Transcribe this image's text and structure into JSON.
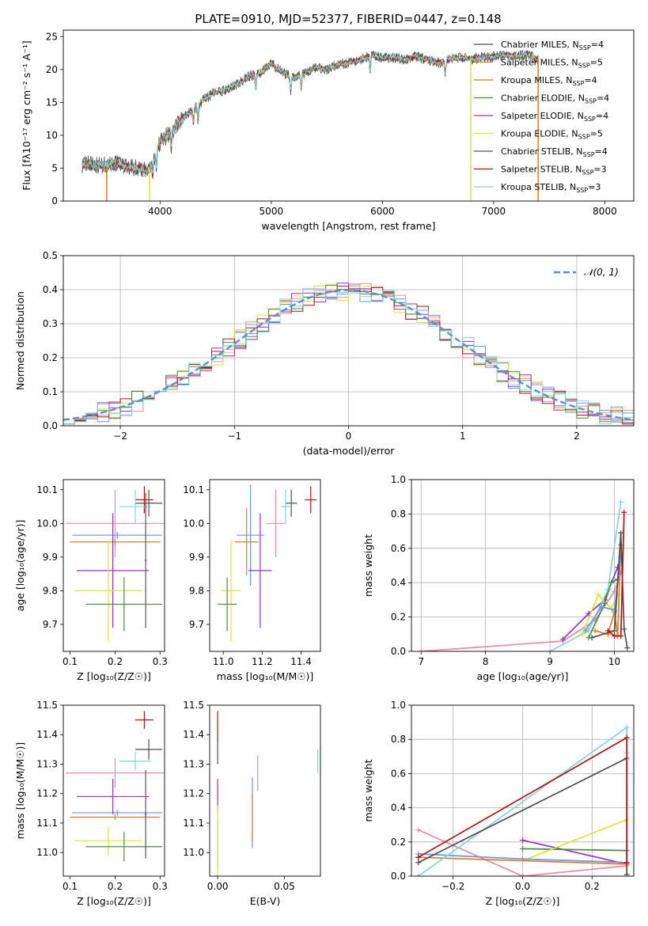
{
  "figure_title": "PLATE=0910, MJD=52377, FIBERID=0447, z=0.148",
  "colors": [
    "#4d4d4d",
    "#e07b1f",
    "#b8860b",
    "#4c8a3f",
    "#9b2fbf",
    "#d8e830",
    "#555555",
    "#b31212",
    "#7fd7dc",
    "#6495ed",
    "#e87db8",
    "#e88aa8"
  ],
  "chart_data": [
    {
      "id": "spectrum",
      "type": "line",
      "title": "PLATE=0910, MJD=52377, FIBERID=0447, z=0.148",
      "xlabel": "wavelength [Angstrom, rest frame]",
      "ylabel": "Flux [fλ10⁻¹⁷ erg cm⁻² s⁻¹ A⁻¹]",
      "xlim": [
        3130,
        8260
      ],
      "ylim": [
        0,
        26
      ],
      "xticks": [
        4000,
        5000,
        6000,
        7000,
        8000
      ],
      "yticks": [
        0,
        5,
        10,
        15,
        20,
        25
      ],
      "grid": false,
      "legend_position": "top-right",
      "series": [
        {
          "name": "Chabrier MILES, NSSP=4",
          "legend_text": "Chabrier MILES, N",
          "legend_sub": "SSP",
          "legend_tail": "=4",
          "color": "#4d4d4d"
        },
        {
          "name": "Salpeter MILES, NSSP=5",
          "legend_text": "Salpeter MILES, N",
          "legend_sub": "SSP",
          "legend_tail": "=5",
          "color": "#e07b1f"
        },
        {
          "name": "Kroupa MILES, NSSP=4",
          "legend_text": "Kroupa MILES, N",
          "legend_sub": "SSP",
          "legend_tail": "=4",
          "color": "#b8860b"
        },
        {
          "name": "Chabrier ELODIE, NSSP=4",
          "legend_text": "Chabrier ELODIE, N",
          "legend_sub": "SSP",
          "legend_tail": "=4",
          "color": "#4c8a3f"
        },
        {
          "name": "Salpeter ELODIE, NSSP=4",
          "legend_text": "Salpeter ELODIE, N",
          "legend_sub": "SSP",
          "legend_tail": "=4",
          "color": "#9b2fbf"
        },
        {
          "name": "Kroupa ELODIE, NSSP=5",
          "legend_text": "Kroupa ELODIE, N",
          "legend_sub": "SSP",
          "legend_tail": "=5",
          "color": "#d8e830"
        },
        {
          "name": "Chabrier STELIB, NSSP=4",
          "legend_text": "Chabrier STELIB, N",
          "legend_sub": "SSP",
          "legend_tail": "=4",
          "color": "#555555"
        },
        {
          "name": "Salpeter STELIB, NSSP=3",
          "legend_text": "Salpeter STELIB, N",
          "legend_sub": "SSP",
          "legend_tail": "=3",
          "color": "#b31212"
        },
        {
          "name": "Kroupa STELIB, NSSP=3",
          "legend_text": "Kroupa STELIB, N",
          "legend_sub": "SSP",
          "legend_tail": "=3",
          "color": "#7fd7dc"
        }
      ],
      "continuum": {
        "x": [
          3300,
          3400,
          3500,
          3600,
          3700,
          3800,
          3900,
          4000,
          4100,
          4200,
          4300,
          4400,
          4500,
          4600,
          4700,
          4800,
          4900,
          5000,
          5100,
          5200,
          5300,
          5400,
          5500,
          5600,
          5700,
          5800,
          5900,
          6000,
          6100,
          6200,
          6300,
          6400,
          6500,
          6600,
          6700,
          6800,
          6900,
          7000,
          7100,
          7200,
          7300,
          7400
        ],
        "y": [
          5.6,
          5.6,
          5.5,
          5.8,
          5.2,
          5.0,
          4.6,
          9.0,
          10.5,
          12.5,
          14.0,
          15.5,
          16.5,
          17.0,
          17.8,
          19.0,
          19.5,
          21.0,
          19.5,
          18.8,
          19.4,
          20.3,
          20.0,
          20.8,
          21.0,
          21.5,
          22.2,
          21.8,
          21.8,
          21.5,
          22.0,
          21.5,
          21.0,
          21.6,
          21.8,
          21.6,
          21.8,
          22.0,
          22.2,
          22.0,
          22.3,
          21.5
        ]
      },
      "edge_lines": [
        {
          "x": 3520,
          "ymin": 0,
          "ymax": 5.3,
          "color": "#e07b1f"
        },
        {
          "x": 3905,
          "ymin": 0,
          "ymax": 5.0,
          "color": "#d8e830"
        },
        {
          "x": 6795,
          "ymin": 0,
          "ymax": 21.5,
          "color": "#d8e830"
        },
        {
          "x": 7400,
          "ymin": 0,
          "ymax": 21.8,
          "color": "#e07b1f"
        }
      ]
    },
    {
      "id": "residuals",
      "type": "step",
      "xlabel": "(data-model)/error",
      "ylabel": "Normed distribution",
      "xlim": [
        -2.5,
        2.5
      ],
      "ylim": [
        0,
        0.5
      ],
      "xticks": [
        -2,
        -1,
        0,
        1,
        2
      ],
      "yticks": [
        0.0,
        0.1,
        0.2,
        0.3,
        0.4,
        0.5
      ],
      "grid": true,
      "legend_position": "top-right",
      "legend_label": "𝒩(0, 1)",
      "gaussian_color": "#5a8fd6",
      "bin_width": 0.1,
      "series_colors": [
        "#6495ed",
        "#e88aa8",
        "#d8e830",
        "#9b2fbf",
        "#b31212",
        "#4c8a3f",
        "#7fd7dc"
      ]
    },
    {
      "id": "age_vs_Z",
      "type": "errorbar",
      "xlabel": "Z [log₁₀(Z/Z☉)]",
      "ylabel": "age  [log₁₀(age/yr)]",
      "xlim": [
        0.085,
        0.31
      ],
      "ylim": [
        9.62,
        10.13
      ],
      "xticks": [
        0.1,
        0.2,
        0.3
      ],
      "yticks": [
        9.7,
        9.8,
        9.9,
        10.0,
        10.1
      ],
      "points": [
        {
          "x": 0.265,
          "xerr": 0.02,
          "y": 10.07,
          "yerr": 0.04,
          "color": "#b31212"
        },
        {
          "x": 0.275,
          "xerr": 0.03,
          "y": 10.06,
          "yerr": 0.04,
          "color": "#4d4d4d"
        },
        {
          "x": 0.245,
          "xerr": 0.035,
          "y": 10.05,
          "yerr": 0.05,
          "color": "#7fd7dc"
        },
        {
          "x": 0.2,
          "xerr": 0.11,
          "y": 10.0,
          "yerr": 0.1,
          "color": "#e88aa8"
        },
        {
          "x": 0.205,
          "xerr": 0.1,
          "y": 9.965,
          "yerr": 0.01,
          "color": "#6495ed"
        },
        {
          "x": 0.2,
          "xerr": 0.1,
          "y": 9.945,
          "yerr": 0.01,
          "color": "#e07b1f"
        },
        {
          "x": 0.195,
          "xerr": 0.08,
          "y": 9.86,
          "yerr": 0.17,
          "color": "#9b2fbf"
        },
        {
          "x": 0.185,
          "xerr": 0.075,
          "y": 9.8,
          "yerr": 0.15,
          "color": "#d8e830"
        },
        {
          "x": 0.22,
          "xerr": 0.085,
          "y": 9.76,
          "yerr": 0.08,
          "color": "#4c8a3f"
        },
        {
          "x": 0.268,
          "xerr": 0.002,
          "y": 9.89,
          "yerr": 0.2,
          "color": "#555555"
        }
      ]
    },
    {
      "id": "age_vs_mass",
      "type": "errorbar",
      "xlabel": "mass [log₁₀(M/M☉)]",
      "ylabel": "",
      "xlim": [
        10.93,
        11.5
      ],
      "ylim": [
        9.62,
        10.13
      ],
      "xticks": [
        11.0,
        11.2,
        11.4
      ],
      "yticks": [
        9.7,
        9.8,
        9.9,
        10.0,
        10.1
      ],
      "points": [
        {
          "x": 11.45,
          "xerr": 0.03,
          "y": 10.07,
          "yerr": 0.04,
          "color": "#b31212"
        },
        {
          "x": 11.35,
          "xerr": 0.03,
          "y": 10.06,
          "yerr": 0.04,
          "color": "#4d4d4d"
        },
        {
          "x": 11.32,
          "xerr": 0.025,
          "y": 10.05,
          "yerr": 0.05,
          "color": "#7fd7dc"
        },
        {
          "x": 11.27,
          "xerr": 0.05,
          "y": 10.0,
          "yerr": 0.1,
          "color": "#e88aa8"
        },
        {
          "x": 11.14,
          "xerr": 0.07,
          "y": 9.965,
          "yerr": 0.15,
          "color": "#6495ed"
        },
        {
          "x": 11.12,
          "xerr": 0.06,
          "y": 9.945,
          "yerr": 0.1,
          "color": "#e07b1f"
        },
        {
          "x": 11.19,
          "xerr": 0.06,
          "y": 9.86,
          "yerr": 0.17,
          "color": "#9b2fbf"
        },
        {
          "x": 11.04,
          "xerr": 0.05,
          "y": 9.8,
          "yerr": 0.15,
          "color": "#d8e830"
        },
        {
          "x": 11.02,
          "xerr": 0.05,
          "y": 9.76,
          "yerr": 0.08,
          "color": "#4c8a3f"
        }
      ]
    },
    {
      "id": "massweight_vs_age",
      "type": "line",
      "xlabel": "age  [log₁₀(age/yr)]",
      "ylabel": "mass weight",
      "xlim": [
        6.85,
        10.3
      ],
      "ylim": [
        0,
        1.0
      ],
      "xticks": [
        7,
        8,
        9,
        10
      ],
      "yticks": [
        0.0,
        0.2,
        0.4,
        0.6,
        0.8,
        1.0
      ],
      "grid": true,
      "series": [
        {
          "color": "#e88aa8",
          "x": [
            7.0,
            9.2,
            9.7,
            10.0,
            10.1
          ],
          "y": [
            0.0,
            0.06,
            0.18,
            0.35,
            0.46
          ]
        },
        {
          "color": "#9b2fbf",
          "x": [
            9.2,
            9.6,
            9.85,
            10.05
          ],
          "y": [
            0.07,
            0.22,
            0.3,
            0.49
          ]
        },
        {
          "color": "#7fd7dc",
          "x": [
            9.0,
            9.6,
            9.9,
            10.1
          ],
          "y": [
            0.0,
            0.12,
            0.36,
            0.87
          ]
        },
        {
          "color": "#d8e830",
          "x": [
            9.5,
            9.75,
            9.95,
            10.05
          ],
          "y": [
            0.1,
            0.33,
            0.25,
            0.33
          ]
        },
        {
          "color": "#4c8a3f",
          "x": [
            9.6,
            9.85,
            9.95,
            10.05
          ],
          "y": [
            0.08,
            0.28,
            0.4,
            0.42
          ]
        },
        {
          "color": "#e07b1f",
          "x": [
            9.7,
            9.9,
            10.0,
            10.05,
            10.1
          ],
          "y": [
            0.12,
            0.1,
            0.23,
            0.09,
            0.62
          ]
        },
        {
          "color": "#6495ed",
          "x": [
            9.55,
            9.8,
            10.0,
            10.1
          ],
          "y": [
            0.12,
            0.26,
            0.24,
            0.55
          ]
        },
        {
          "color": "#4d4d4d",
          "x": [
            9.65,
            10.0,
            10.1,
            10.15,
            10.2
          ],
          "y": [
            0.08,
            0.12,
            0.69,
            0.13,
            0.02
          ]
        },
        {
          "color": "#b31212",
          "x": [
            9.9,
            10.0,
            10.1,
            10.15
          ],
          "y": [
            0.12,
            0.09,
            0.09,
            0.81
          ]
        }
      ]
    },
    {
      "id": "mass_vs_Z",
      "type": "errorbar",
      "xlabel": "Z [log₁₀(Z/Z☉)]",
      "ylabel": "mass [log₁₀(M/M☉)]",
      "xlim": [
        0.085,
        0.31
      ],
      "ylim": [
        10.92,
        11.5
      ],
      "xticks": [
        0.1,
        0.2,
        0.3
      ],
      "yticks": [
        11.0,
        11.1,
        11.2,
        11.3,
        11.4,
        11.5
      ],
      "points": [
        {
          "x": 0.265,
          "xerr": 0.02,
          "y": 11.45,
          "yerr": 0.03,
          "color": "#b31212"
        },
        {
          "x": 0.275,
          "xerr": 0.03,
          "y": 11.35,
          "yerr": 0.035,
          "color": "#4d4d4d"
        },
        {
          "x": 0.245,
          "xerr": 0.035,
          "y": 11.31,
          "yerr": 0.03,
          "color": "#7fd7dc"
        },
        {
          "x": 0.2,
          "xerr": 0.11,
          "y": 11.27,
          "yerr": 0.05,
          "color": "#e88aa8"
        },
        {
          "x": 0.205,
          "xerr": 0.1,
          "y": 11.135,
          "yerr": 0.01,
          "color": "#6495ed"
        },
        {
          "x": 0.2,
          "xerr": 0.1,
          "y": 11.12,
          "yerr": 0.01,
          "color": "#e07b1f"
        },
        {
          "x": 0.195,
          "xerr": 0.08,
          "y": 11.19,
          "yerr": 0.06,
          "color": "#9b2fbf"
        },
        {
          "x": 0.185,
          "xerr": 0.075,
          "y": 11.04,
          "yerr": 0.05,
          "color": "#d8e830"
        },
        {
          "x": 0.22,
          "xerr": 0.085,
          "y": 11.02,
          "yerr": 0.05,
          "color": "#4c8a3f"
        },
        {
          "x": 0.268,
          "xerr": 0.002,
          "y": 11.13,
          "yerr": 0.15,
          "color": "#555555"
        }
      ]
    },
    {
      "id": "mass_vs_EBV",
      "type": "errorbar",
      "xlabel": "E(B-V)",
      "ylabel": "",
      "xlim": [
        -0.006,
        0.077
      ],
      "ylim": [
        10.92,
        11.5
      ],
      "xticks": [
        0.0,
        0.05
      ],
      "yticks": [
        11.0,
        11.1,
        11.2,
        11.3,
        11.4,
        11.5
      ],
      "points": [
        {
          "x": 0.0,
          "xerr": 0,
          "y": 11.43,
          "yerr": 0.05,
          "color": "#b31212"
        },
        {
          "x": 0.0,
          "xerr": 0,
          "y": 11.35,
          "yerr": 0.05,
          "color": "#4d4d4d"
        },
        {
          "x": 0.0,
          "xerr": 0,
          "y": 11.19,
          "yerr": 0.06,
          "color": "#9b2fbf"
        },
        {
          "x": 0.0,
          "xerr": 0,
          "y": 11.02,
          "yerr": 0.08,
          "color": "#4c8a3f"
        },
        {
          "x": 0.0,
          "xerr": 0,
          "y": 11.04,
          "yerr": 0.12,
          "color": "#d8e830"
        },
        {
          "x": 0.026,
          "xerr": 0,
          "y": 11.135,
          "yerr": 0.12,
          "color": "#6495ed"
        },
        {
          "x": 0.026,
          "xerr": 0,
          "y": 11.12,
          "yerr": 0.08,
          "color": "#e07b1f"
        },
        {
          "x": 0.03,
          "xerr": 0,
          "y": 11.27,
          "yerr": 0.06,
          "color": "#e88aa8"
        },
        {
          "x": 0.075,
          "xerr": 0,
          "y": 11.31,
          "yerr": 0.04,
          "color": "#7fd7dc"
        }
      ]
    },
    {
      "id": "massweight_vs_Z",
      "type": "line",
      "xlabel": "Z [log₁₀(Z/Z☉)]",
      "ylabel": "mass weight",
      "xlim": [
        -0.32,
        0.32
      ],
      "ylim": [
        0,
        1.0
      ],
      "xticks": [
        -0.2,
        0.0,
        0.2
      ],
      "yticks": [
        0.0,
        0.2,
        0.4,
        0.6,
        0.8,
        1.0
      ],
      "grid": true,
      "series": [
        {
          "color": "#e88aa8",
          "x": [
            -0.3,
            0.0,
            0.3
          ],
          "y": [
            0.27,
            0.0,
            0.06
          ]
        },
        {
          "color": "#9b2fbf",
          "x": [
            0.0,
            0.3
          ],
          "y": [
            0.21,
            0.07
          ]
        },
        {
          "color": "#4c8a3f",
          "x": [
            0.0,
            0.3
          ],
          "y": [
            0.16,
            0.15
          ]
        },
        {
          "color": "#d8e830",
          "x": [
            0.0,
            0.3
          ],
          "y": [
            0.09,
            0.33
          ]
        },
        {
          "color": "#6495ed",
          "x": [
            -0.3,
            0.0,
            0.3
          ],
          "y": [
            0.13,
            0.1,
            0.08
          ]
        },
        {
          "color": "#e07b1f",
          "x": [
            -0.3,
            0.3
          ],
          "y": [
            0.11,
            0.07
          ]
        },
        {
          "color": "#7fd7dc",
          "x": [
            -0.3,
            0.3,
            0.3
          ],
          "y": [
            0.0,
            0.87,
            0.72
          ]
        },
        {
          "color": "#4d4d4d",
          "x": [
            -0.3,
            0.3,
            0.3
          ],
          "y": [
            0.08,
            0.69,
            0.01
          ]
        },
        {
          "color": "#b31212",
          "x": [
            -0.3,
            0.3,
            0.3
          ],
          "y": [
            0.11,
            0.81,
            0.08
          ]
        }
      ]
    }
  ]
}
